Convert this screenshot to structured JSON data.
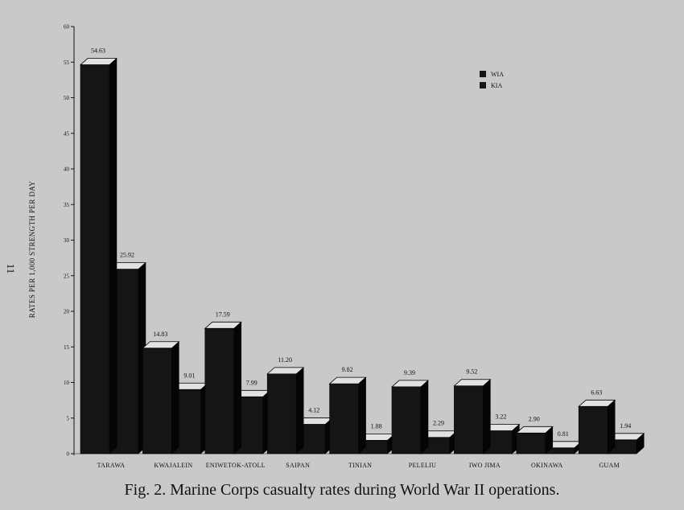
{
  "chart_data": {
    "type": "bar",
    "title": "",
    "xlabel": "",
    "ylabel": "RATES PER 1,000 STRENGTH PER DAY",
    "ylim": [
      0,
      60
    ],
    "yticks": [
      0,
      5,
      10,
      15,
      20,
      25,
      30,
      35,
      40,
      45,
      50,
      55,
      60
    ],
    "ytick_labels": [
      "0",
      "5",
      "10",
      "15",
      "20",
      "25",
      "30",
      "35",
      "40",
      "45",
      "50",
      "55",
      "60"
    ],
    "categories": [
      "TARAWA",
      "KWAJALEIN",
      "ENIWETOK-ATOLL",
      "SAIPAN",
      "TINIAN",
      "PELELIU",
      "IWO JIMA",
      "OKINAWA",
      "GUAM"
    ],
    "series": [
      {
        "name": "WIA",
        "values": [
          54.63,
          14.83,
          17.59,
          11.2,
          9.82,
          9.39,
          9.52,
          2.9,
          6.63
        ],
        "labels": [
          "54.63",
          "14.83",
          "17.59",
          "11.20",
          "9.82",
          "9.39",
          "9.52",
          "2.90",
          "6.63"
        ]
      },
      {
        "name": "KIA",
        "values": [
          25.92,
          9.01,
          7.99,
          4.12,
          1.88,
          2.29,
          3.22,
          0.81,
          1.94
        ],
        "labels": [
          "25.92",
          "9.01",
          "7.99",
          "4.12",
          "1.88",
          "2.29",
          "3.22",
          "0.81",
          "1.94"
        ]
      }
    ],
    "legend_position": "top-right",
    "grid": false,
    "style": "3d-bar"
  },
  "colors": {
    "background": "#c9c9c9",
    "bar_front": "#151515",
    "bar_top": "#e2e2e2",
    "bar_side": "#050505",
    "ink": "#111111"
  },
  "page_number": "11",
  "caption": "Fig. 2. Marine Corps casualty rates during World War II operations."
}
